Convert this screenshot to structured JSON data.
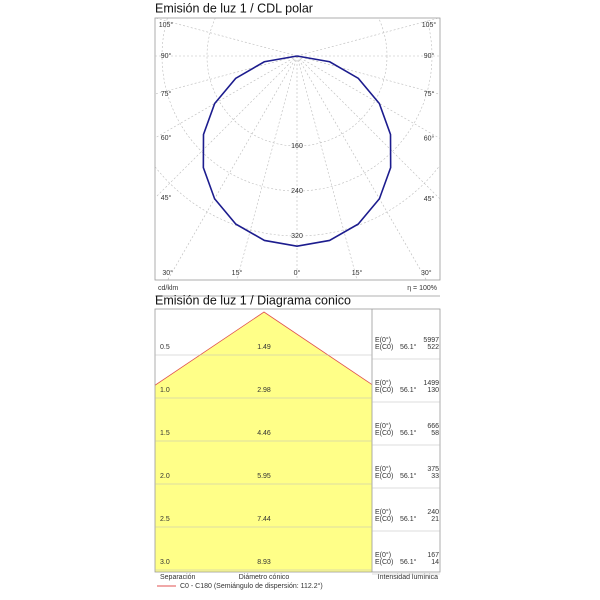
{
  "chart_data": [
    {
      "type": "polar",
      "title": "Emisión de luz 1 / CDL polar",
      "unit_label": "cd/klm",
      "efficiency_label": "η = 100%",
      "x": [
        -90,
        -80,
        -70,
        -60,
        -50,
        -40,
        -30,
        -20,
        -10,
        0,
        10,
        20,
        30,
        40,
        50,
        60,
        70,
        80,
        90
      ],
      "series": [
        {
          "color": "#1c1c8e",
          "values": [
            0,
            59,
            116,
            169,
            217,
            259,
            293,
            318,
            333,
            338,
            333,
            318,
            293,
            259,
            217,
            169,
            116,
            59,
            0
          ]
        }
      ],
      "rlim": [
        0,
        320
      ],
      "rticks": [
        160,
        240,
        320
      ],
      "angle_ticks": [
        {
          "value": -105,
          "label": "105°"
        },
        {
          "value": -90,
          "label": "90°"
        },
        {
          "value": -75,
          "label": "75°"
        },
        {
          "value": -60,
          "label": "60°"
        },
        {
          "value": -45,
          "label": "45°"
        },
        {
          "value": -30,
          "label": "30°"
        },
        {
          "value": -15,
          "label": "15°"
        },
        {
          "value": 0,
          "label": "0°"
        },
        {
          "value": 15,
          "label": "15°"
        },
        {
          "value": 30,
          "label": "30°"
        },
        {
          "value": 45,
          "label": "45°"
        },
        {
          "value": 60,
          "label": "60°"
        },
        {
          "value": 75,
          "label": "75°"
        },
        {
          "value": 90,
          "label": "90°"
        },
        {
          "value": 105,
          "label": "105°"
        }
      ],
      "grid": true
    },
    {
      "type": "cone",
      "title": "Emisión de luz 1 / Diagrama conico",
      "distances": [
        {
          "value": 0.5,
          "label": "0.5"
        },
        {
          "value": 1.0,
          "label": "1.0"
        },
        {
          "value": 1.5,
          "label": "1.5"
        },
        {
          "value": 2.0,
          "label": "2.0"
        },
        {
          "value": 2.5,
          "label": "2.5"
        },
        {
          "value": 3.0,
          "label": "3.0"
        }
      ],
      "diameters": [
        1.49,
        2.98,
        4.46,
        5.95,
        7.44,
        8.93
      ],
      "e_labels": [
        "E(0°)",
        "E(C0)"
      ],
      "angles": [
        56.1,
        56.1,
        56.1,
        56.1,
        56.1,
        56.1
      ],
      "angle_labels": [
        "56.1°",
        "56.1°",
        "56.1°",
        "56.1°",
        "56.1°",
        "56.1°"
      ],
      "e_center": [
        5997,
        1499,
        666,
        375,
        240,
        167
      ],
      "e_c0": [
        522,
        130,
        58,
        33,
        21,
        14
      ],
      "fill_color": "#ffff88",
      "edge_color": "#e05050",
      "column_labels": [
        "Separación",
        "Diámetro cónico",
        "Intensidad lumínica"
      ],
      "legend": "C0 - C180 (Semiángulo de dispersión: 112.2°)"
    }
  ]
}
